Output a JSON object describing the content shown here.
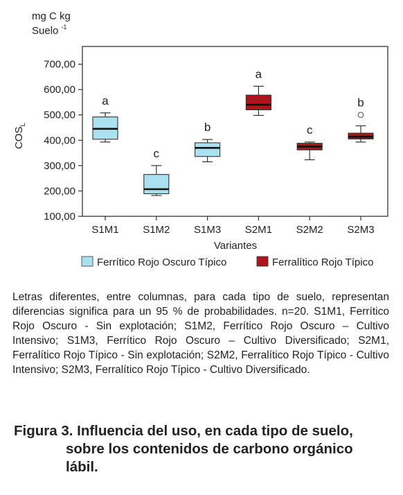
{
  "chart_data": {
    "type": "box",
    "unit_label_line1": "mg C kg",
    "unit_label_line2": "Suelo",
    "unit_label_exp": "-1",
    "ylabel_base": "COS",
    "ylabel_sub": "L",
    "xlabel": "Variantes",
    "ylim": [
      100,
      770
    ],
    "yticks": [
      100,
      200,
      300,
      400,
      500,
      600,
      700
    ],
    "ytick_labels": [
      "100,00",
      "200,00",
      "300,00",
      "400,00",
      "500,00",
      "600,00",
      "700,00"
    ],
    "grid": false,
    "legend_position": "bottom",
    "categories": [
      "S1M1",
      "S1M2",
      "S1M3",
      "S2M1",
      "S2M2",
      "S2M3"
    ],
    "boxes": [
      {
        "category": "S1M1",
        "series": 0,
        "min": 393,
        "q1": 404,
        "median": 445,
        "q3": 492,
        "max": 508,
        "letter": "a",
        "outliers": []
      },
      {
        "category": "S1M2",
        "series": 0,
        "min": 182,
        "q1": 189,
        "median": 207,
        "q3": 265,
        "max": 300,
        "letter": "c",
        "outliers": []
      },
      {
        "category": "S1M3",
        "series": 0,
        "min": 315,
        "q1": 336,
        "median": 370,
        "q3": 390,
        "max": 403,
        "letter": "b",
        "outliers": []
      },
      {
        "category": "S2M1",
        "series": 1,
        "min": 498,
        "q1": 520,
        "median": 540,
        "q3": 578,
        "max": 613,
        "letter": "a",
        "outliers": []
      },
      {
        "category": "S2M2",
        "series": 1,
        "min": 323,
        "q1": 362,
        "median": 375,
        "q3": 388,
        "max": 393,
        "letter": "c",
        "outliers": []
      },
      {
        "category": "S2M3",
        "series": 1,
        "min": 393,
        "q1": 405,
        "median": 414,
        "q3": 428,
        "max": 457,
        "letter": "b",
        "outliers": [
          500
        ]
      }
    ],
    "series": [
      {
        "name": "Ferrítico Rojo Oscuro Típico",
        "color": "#a9e2ee"
      },
      {
        "name": "Ferralítico Rojo Típico",
        "color": "#b0141b"
      }
    ]
  },
  "caption": "Letras diferentes, entre columnas, para cada tipo de suelo, representan diferencias significa para un 95 % de probabilidades. n=20. S1M1, Ferrítico Rojo Oscuro - Sin explotación; S1M2, Ferrítico Rojo Oscuro – Cultivo Intensivo; S1M3, Ferrítico Rojo Oscuro – Cultivo Diversificado; S2M1, Ferralítico Rojo Típico - Sin explotación; S2M2, Ferralítico Rojo Típico - Cultivo Intensivo; S2M3, Ferralítico Rojo Típico - Cultivo Diversificado.",
  "figure": {
    "number": "Figura 3.",
    "title_line1": "Influencia del uso, en cada tipo de suelo,",
    "title_line2": "sobre los contenidos de carbono orgánico",
    "title_line3": "lábil."
  }
}
